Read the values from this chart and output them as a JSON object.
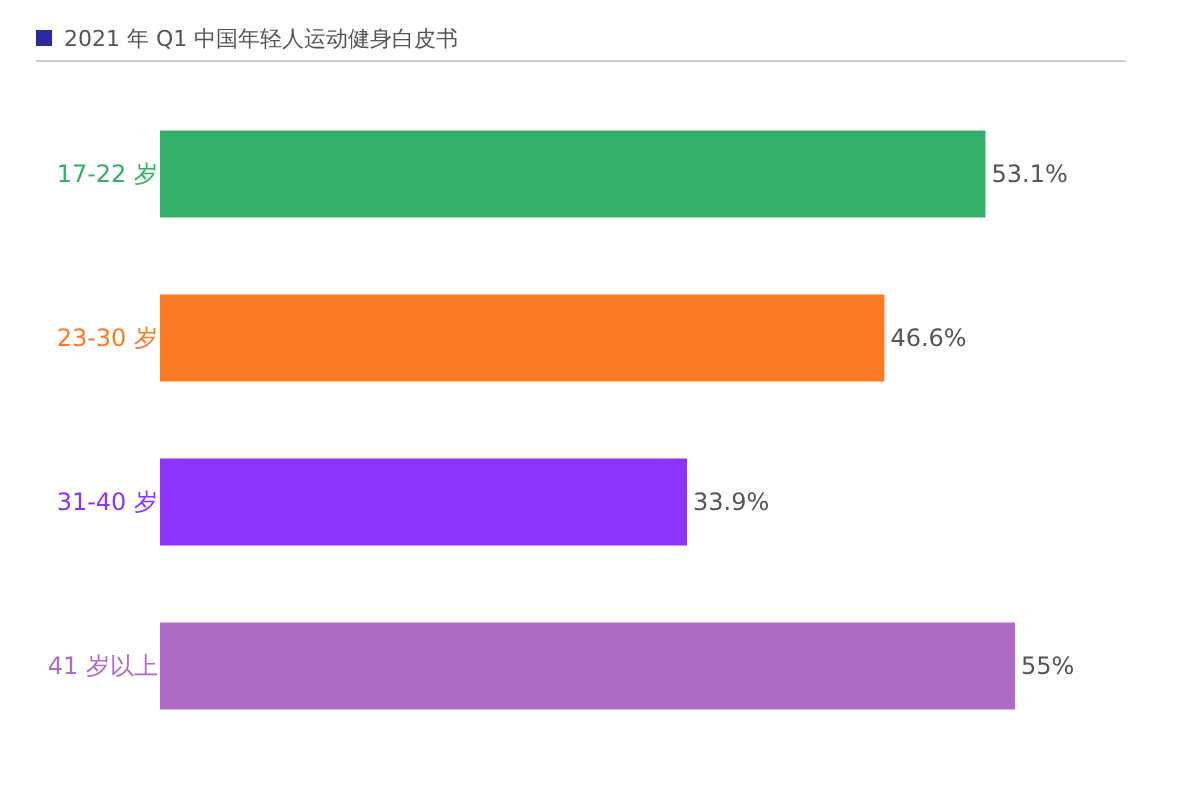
{
  "chart_data": {
    "type": "bar",
    "orientation": "horizontal",
    "title": "2021 年 Q1 中国年轻人运动健身白皮书",
    "categories": [
      "17-22 岁",
      "23-30 岁",
      "31-40 岁",
      "41 岁以上"
    ],
    "values": [
      53.1,
      46.6,
      33.9,
      55
    ],
    "colors": [
      "#34b06c",
      "#fc7a26",
      "#8c33fc",
      "#ad6cc5"
    ],
    "value_labels": [
      "53.1%",
      "46.6%",
      "33.9%",
      "55%"
    ],
    "legend": false,
    "tick_labels": "y"
  }
}
